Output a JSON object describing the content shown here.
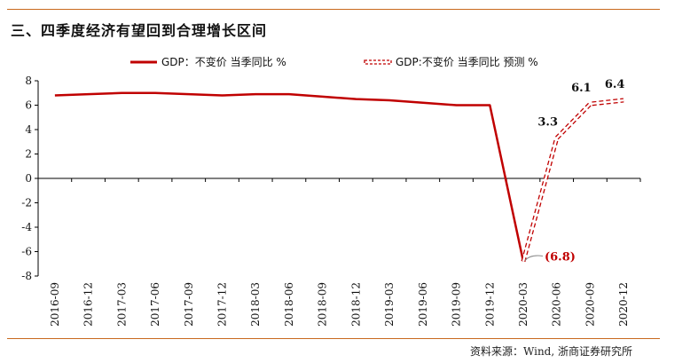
{
  "title": "三、四季度经济有望回到合理增长区间",
  "source": "资料来源：Wind, 浙商证券研究所",
  "colors": {
    "series": "#c00000",
    "rule": "#c8691e",
    "axis": "#000000"
  },
  "chart_data": {
    "type": "line",
    "categories": [
      "2016-09",
      "2016-12",
      "2017-03",
      "2017-06",
      "2017-09",
      "2017-12",
      "2018-03",
      "2018-06",
      "2018-09",
      "2018-12",
      "2019-03",
      "2019-06",
      "2019-09",
      "2019-12",
      "2020-03",
      "2020-06",
      "2020-09",
      "2020-12"
    ],
    "ylim": [
      -8,
      8
    ],
    "yticks": [
      -8,
      -6,
      -4,
      -2,
      0,
      2,
      4,
      6,
      8
    ],
    "series": [
      {
        "name": "GDP：不变价 当季同比 %",
        "style": "solid",
        "values": [
          6.8,
          6.9,
          7.0,
          7.0,
          6.9,
          6.8,
          6.9,
          6.9,
          6.7,
          6.5,
          6.4,
          6.2,
          6.0,
          6.0,
          -6.8,
          null,
          null,
          null
        ]
      },
      {
        "name": "GDP:不变价 当季同比 预测 %",
        "style": "dashed",
        "values": [
          null,
          null,
          null,
          null,
          null,
          null,
          null,
          null,
          null,
          null,
          null,
          null,
          null,
          null,
          -6.8,
          3.3,
          6.1,
          6.4
        ]
      }
    ],
    "annotations": [
      {
        "index": 14,
        "value": -6.8,
        "text": "(6.8)",
        "color": "red"
      },
      {
        "index": 15,
        "value": 3.3,
        "text": "3.3",
        "color": "black"
      },
      {
        "index": 16,
        "value": 6.1,
        "text": "6.1",
        "color": "black"
      },
      {
        "index": 17,
        "value": 6.4,
        "text": "6.4",
        "color": "black"
      }
    ]
  }
}
